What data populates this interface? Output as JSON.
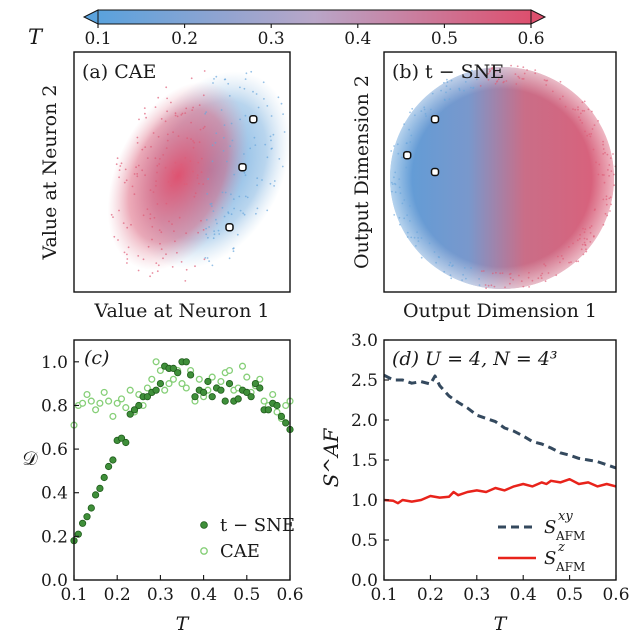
{
  "colorbar": {
    "label": "T",
    "ticks": [
      "0.1",
      "0.2",
      "0.3",
      "0.4",
      "0.5",
      "0.6"
    ],
    "range": [
      0.1,
      0.6
    ],
    "color_low": "#5aa2dd",
    "color_high": "#dd4f6e"
  },
  "chart_data": [
    {
      "panel": "(a)",
      "panel_label": "(a) CAE",
      "type": "scatter",
      "xlabel": "Value at Neuron 1",
      "ylabel": "Value at Neuron 2",
      "color_by": "T",
      "description_points": "dense cloud of points colored by T (low T blue, high T red)",
      "marked_points": [
        {
          "x": 0.83,
          "y": 0.72
        },
        {
          "x": 0.78,
          "y": 0.52
        },
        {
          "x": 0.72,
          "y": 0.27
        }
      ]
    },
    {
      "panel": "(b)",
      "panel_label": "(b) t − SNE",
      "type": "scatter",
      "xlabel": "Output Dimension 1",
      "ylabel": "Output Dimension 2",
      "color_by": "T",
      "marked_points": [
        {
          "x": 0.22,
          "y": 0.72
        },
        {
          "x": 0.1,
          "y": 0.57
        },
        {
          "x": 0.22,
          "y": 0.5
        }
      ]
    },
    {
      "panel": "(c)",
      "panel_label": "(c)",
      "type": "scatter",
      "xlabel": "T",
      "ylabel": "𝒟",
      "xlim": [
        0.1,
        0.6
      ],
      "ylim": [
        0.0,
        1.1
      ],
      "xticks": [
        "0.1",
        "0.2",
        "0.3",
        "0.4",
        "0.5",
        "0.6"
      ],
      "yticks": [
        "0.0",
        "0.2",
        "0.4",
        "0.6",
        "0.8",
        "1.0"
      ],
      "legend_position": "bottom-right",
      "series": [
        {
          "name": "t − SNE",
          "color": "#3f8f3a",
          "marker": "filled-circle",
          "x": [
            0.1,
            0.11,
            0.12,
            0.13,
            0.14,
            0.15,
            0.16,
            0.17,
            0.18,
            0.19,
            0.2,
            0.21,
            0.22,
            0.23,
            0.24,
            0.25,
            0.26,
            0.27,
            0.28,
            0.29,
            0.3,
            0.31,
            0.32,
            0.33,
            0.34,
            0.35,
            0.36,
            0.37,
            0.38,
            0.39,
            0.4,
            0.41,
            0.42,
            0.43,
            0.44,
            0.45,
            0.46,
            0.47,
            0.48,
            0.49,
            0.5,
            0.51,
            0.52,
            0.53,
            0.54,
            0.55,
            0.56,
            0.57,
            0.58,
            0.59,
            0.6
          ],
          "y": [
            0.18,
            0.21,
            0.26,
            0.29,
            0.33,
            0.39,
            0.42,
            0.47,
            0.52,
            0.55,
            0.64,
            0.65,
            0.63,
            0.76,
            0.78,
            0.8,
            0.84,
            0.84,
            0.86,
            0.87,
            0.9,
            0.98,
            0.97,
            0.97,
            0.95,
            1.0,
            1.0,
            0.94,
            0.84,
            0.87,
            0.86,
            0.91,
            0.84,
            0.88,
            0.87,
            0.82,
            0.9,
            0.82,
            0.83,
            0.87,
            0.86,
            0.84,
            0.9,
            0.88,
            0.78,
            0.78,
            0.81,
            0.8,
            0.75,
            0.72,
            0.69
          ]
        },
        {
          "name": "CAE",
          "color": "#86cf78",
          "marker": "open-circle",
          "x": [
            0.1,
            0.11,
            0.12,
            0.13,
            0.14,
            0.15,
            0.16,
            0.17,
            0.18,
            0.19,
            0.2,
            0.21,
            0.22,
            0.23,
            0.24,
            0.25,
            0.26,
            0.27,
            0.28,
            0.29,
            0.3,
            0.31,
            0.32,
            0.33,
            0.34,
            0.35,
            0.36,
            0.37,
            0.38,
            0.39,
            0.4,
            0.41,
            0.42,
            0.43,
            0.44,
            0.45,
            0.46,
            0.47,
            0.48,
            0.49,
            0.5,
            0.51,
            0.52,
            0.53,
            0.54,
            0.55,
            0.56,
            0.57,
            0.58,
            0.59,
            0.6
          ],
          "y": [
            0.71,
            0.8,
            0.81,
            0.85,
            0.82,
            0.78,
            0.81,
            0.86,
            0.82,
            0.75,
            0.81,
            0.83,
            0.79,
            0.87,
            0.77,
            0.85,
            0.8,
            0.88,
            0.92,
            1.0,
            0.96,
            0.87,
            0.9,
            0.92,
            0.96,
            0.9,
            0.88,
            0.96,
            0.82,
            0.92,
            0.84,
            0.87,
            0.93,
            0.88,
            0.91,
            0.95,
            0.96,
            0.87,
            0.88,
            0.98,
            0.93,
            0.86,
            0.89,
            0.92,
            0.82,
            0.8,
            0.85,
            0.77,
            0.74,
            0.8,
            0.82
          ]
        }
      ]
    },
    {
      "panel": "(d)",
      "panel_label": "(d) U = 4,  N = 4³",
      "type": "line",
      "xlabel": "T",
      "ylabel": "S^AF",
      "xlim": [
        0.1,
        0.6
      ],
      "ylim": [
        0.0,
        3.0
      ],
      "xticks": [
        "0.1",
        "0.2",
        "0.3",
        "0.4",
        "0.5",
        "0.6"
      ],
      "yticks": [
        "0.0",
        "0.5",
        "1.0",
        "1.5",
        "2.0",
        "2.5",
        "3.0"
      ],
      "legend_position": "bottom-right",
      "series": [
        {
          "name": "S_AFM^xy",
          "color": "#34495e",
          "style": "dashed",
          "x": [
            0.1,
            0.12,
            0.14,
            0.16,
            0.18,
            0.2,
            0.21,
            0.22,
            0.24,
            0.26,
            0.28,
            0.3,
            0.32,
            0.34,
            0.36,
            0.38,
            0.4,
            0.42,
            0.44,
            0.46,
            0.48,
            0.5,
            0.52,
            0.54,
            0.56,
            0.58,
            0.6
          ],
          "y": [
            2.56,
            2.5,
            2.5,
            2.46,
            2.48,
            2.45,
            2.55,
            2.43,
            2.3,
            2.22,
            2.15,
            2.06,
            2.02,
            1.98,
            1.9,
            1.86,
            1.8,
            1.73,
            1.7,
            1.65,
            1.59,
            1.56,
            1.52,
            1.5,
            1.48,
            1.44,
            1.4
          ]
        },
        {
          "name": "S_AFM^z",
          "color": "#e8231b",
          "style": "solid",
          "x": [
            0.1,
            0.12,
            0.13,
            0.14,
            0.16,
            0.18,
            0.2,
            0.22,
            0.24,
            0.25,
            0.26,
            0.28,
            0.3,
            0.32,
            0.34,
            0.36,
            0.38,
            0.4,
            0.42,
            0.44,
            0.45,
            0.46,
            0.48,
            0.5,
            0.52,
            0.54,
            0.56,
            0.58,
            0.6
          ],
          "y": [
            1.0,
            0.99,
            0.96,
            1.0,
            0.98,
            1.0,
            1.05,
            1.03,
            1.04,
            1.1,
            1.06,
            1.1,
            1.12,
            1.1,
            1.15,
            1.12,
            1.17,
            1.2,
            1.17,
            1.22,
            1.2,
            1.24,
            1.22,
            1.26,
            1.2,
            1.22,
            1.17,
            1.2,
            1.17
          ]
        }
      ]
    }
  ],
  "legend": {
    "c_tsne": "t − SNE",
    "c_cae": "CAE",
    "d_xy_main": "S",
    "d_xy_sub": "AFM",
    "d_xy_sup": "xy",
    "d_z_main": "S",
    "d_z_sub": "AFM",
    "d_z_sup": "z"
  }
}
